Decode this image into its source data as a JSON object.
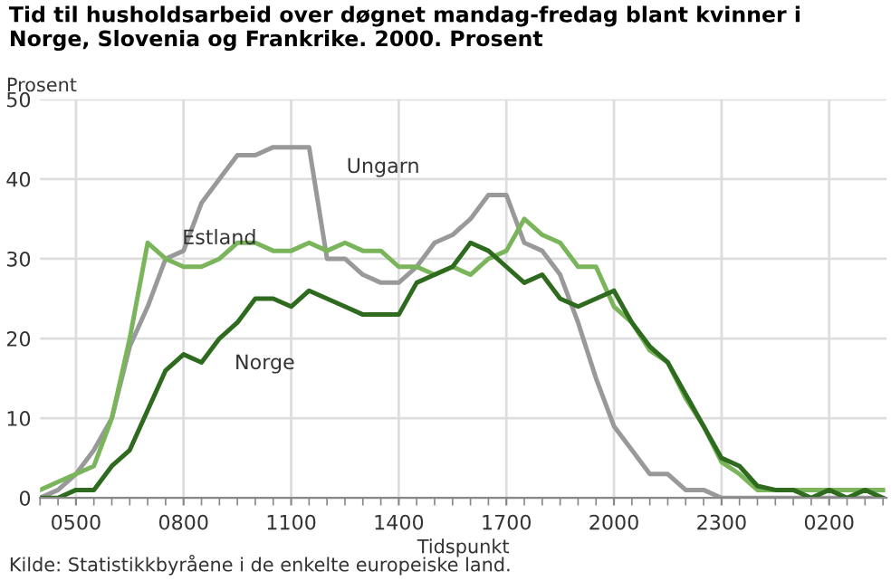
{
  "chart_data": {
    "type": "line",
    "title": "Tid til husholdsarbeid over døgnet mandag-fredag blant kvinner i Norge, Slovenia og Frankrike. 2000. Prosent",
    "ylabel": "Prosent",
    "xlabel": "Tidspunkt",
    "annotations": [
      "Kilde: Statistikkbyråene i de enkelte europeiske land."
    ],
    "categories": [
      null,
      null,
      "0500",
      null,
      null,
      null,
      null,
      null,
      "0800",
      null,
      null,
      null,
      null,
      null,
      "1100",
      null,
      null,
      null,
      null,
      null,
      "1400",
      null,
      null,
      null,
      null,
      null,
      "1700",
      null,
      null,
      null,
      null,
      null,
      "2000",
      null,
      null,
      null,
      null,
      null,
      "2300",
      null,
      null,
      null,
      null,
      null,
      "0200",
      null,
      null,
      null
    ],
    "series": [
      {
        "name": "Ungarn",
        "color": "#999999",
        "values": [
          0,
          1,
          3,
          6,
          10,
          19,
          24,
          30,
          31,
          37,
          40,
          43,
          43,
          44,
          44,
          44,
          30,
          30,
          28,
          27,
          27,
          29,
          32,
          33,
          35,
          38,
          38,
          32,
          31,
          28,
          22,
          15,
          9,
          6,
          3,
          3,
          1,
          1,
          0,
          0,
          0,
          0,
          0,
          0,
          0,
          0,
          0,
          0
        ]
      },
      {
        "name": "Estland",
        "color": "#7ab55c",
        "values": [
          1,
          2,
          3,
          4,
          10,
          20,
          32,
          30,
          29,
          29,
          30,
          32,
          32,
          31,
          31,
          32,
          31,
          32,
          31,
          31,
          29,
          29,
          28,
          29,
          28,
          30,
          31,
          35,
          33,
          32,
          29,
          29,
          24,
          22,
          18.5,
          17,
          12.5,
          9,
          4.5,
          3,
          1,
          1,
          1,
          1,
          1,
          1,
          1,
          1
        ]
      },
      {
        "name": "Norge",
        "color": "#2e6b1f",
        "values": [
          0,
          0,
          1,
          1,
          4,
          6,
          11,
          16,
          18,
          17,
          20,
          22,
          25,
          25,
          24,
          26,
          25,
          24,
          23,
          23,
          23,
          27,
          28,
          29,
          32,
          31,
          29,
          27,
          28,
          25,
          24,
          25,
          26,
          22,
          19,
          17,
          13,
          9,
          5,
          4,
          1.5,
          1,
          1,
          0,
          1,
          0,
          1,
          0
        ]
      }
    ],
    "ylim": [
      0,
      50
    ],
    "yticks": [
      0,
      10,
      20,
      30,
      40,
      50
    ],
    "grid": true,
    "legend": false,
    "marker": "none",
    "line_style": "solid"
  }
}
